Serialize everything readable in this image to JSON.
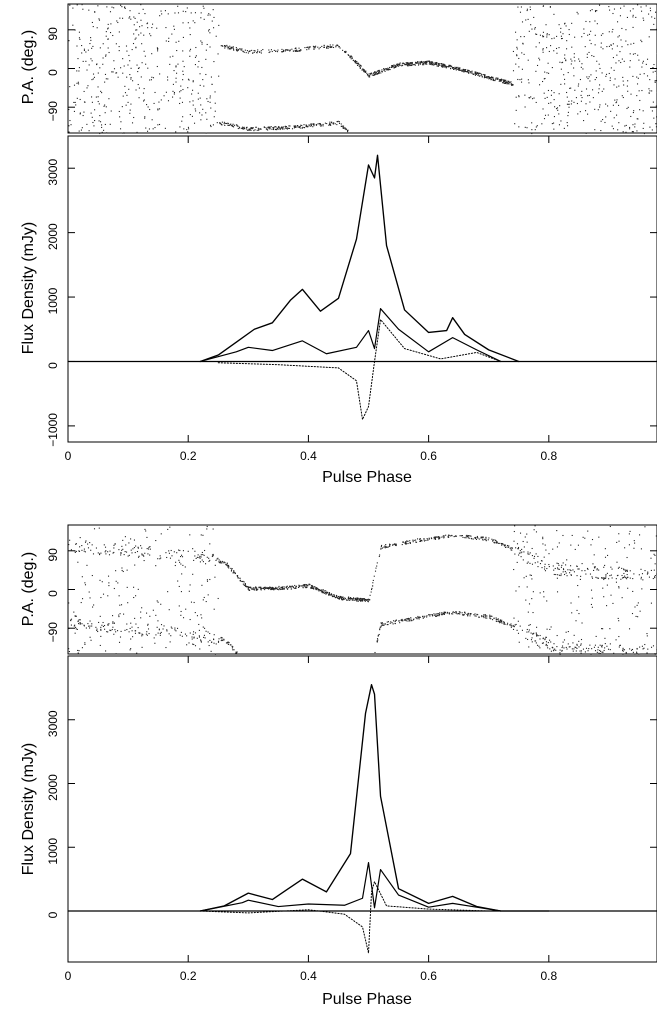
{
  "chart_data": [
    {
      "type": "scatter",
      "ylabel": "P.A. (deg.)",
      "xlim": [
        0,
        0.98
      ],
      "ylim": [
        -150,
        150
      ],
      "y_ticks": [
        -90,
        0,
        90
      ],
      "tick_labels": [
        "−90",
        "0",
        "90"
      ],
      "series": [
        {
          "values": [
            {
              "x": 0.25,
              "y": 55
            },
            {
              "x": 0.3,
              "y": 40
            },
            {
              "x": 0.38,
              "y": 45
            },
            {
              "x": 0.45,
              "y": 55
            },
            {
              "x": 0.5,
              "y": -15
            },
            {
              "x": 0.55,
              "y": 10
            },
            {
              "x": 0.6,
              "y": 15
            },
            {
              "x": 0.65,
              "y": 0
            },
            {
              "x": 0.7,
              "y": -20
            },
            {
              "x": 0.74,
              "y": -35
            }
          ]
        }
      ]
    },
    {
      "type": "line",
      "xlabel": "Pulse Phase",
      "ylabel": "Flux Density (mJy)",
      "xlim": [
        0,
        0.98
      ],
      "ylim": [
        -1250,
        3500
      ],
      "x_ticks": [
        0,
        0.2,
        0.4,
        0.6,
        0.8
      ],
      "y_ticks": [
        -1000,
        0,
        1000,
        2000,
        3000
      ],
      "tick_labels": [
        "−1000",
        "0",
        "1000",
        "2000",
        "3000"
      ],
      "series": [
        {
          "x": [
            0.22,
            0.25,
            0.28,
            0.31,
            0.34,
            0.37,
            0.39,
            0.42,
            0.45,
            0.48,
            0.5,
            0.51,
            0.515,
            0.53,
            0.56,
            0.6,
            0.63,
            0.64,
            0.66,
            0.7,
            0.75
          ],
          "values": [
            0,
            100,
            300,
            500,
            600,
            950,
            1120,
            780,
            980,
            1900,
            3050,
            2850,
            3200,
            1800,
            800,
            450,
            480,
            680,
            420,
            180,
            0
          ]
        },
        {
          "x": [
            0.22,
            0.28,
            0.3,
            0.34,
            0.39,
            0.43,
            0.48,
            0.5,
            0.51,
            0.52,
            0.55,
            0.6,
            0.64,
            0.68,
            0.72
          ],
          "values": [
            0,
            150,
            220,
            170,
            320,
            120,
            220,
            480,
            200,
            820,
            500,
            150,
            370,
            180,
            0
          ]
        },
        {
          "x": [
            0.25,
            0.35,
            0.45,
            0.48,
            0.49,
            0.5,
            0.51,
            0.52,
            0.56,
            0.62,
            0.68,
            0.72
          ],
          "values": [
            -20,
            -50,
            -100,
            -300,
            -900,
            -700,
            0,
            650,
            200,
            40,
            140,
            0
          ]
        }
      ]
    },
    {
      "type": "scatter",
      "ylabel": "P.A. (deg.)",
      "xlim": [
        0,
        0.98
      ],
      "ylim": [
        -150,
        150
      ],
      "y_ticks": [
        -90,
        0,
        90
      ],
      "tick_labels": [
        "−90",
        "0",
        "90"
      ],
      "series": [
        {
          "values": [
            {
              "x": 0.0,
              "y": 100
            },
            {
              "x": 0.1,
              "y": 92
            },
            {
              "x": 0.2,
              "y": 80
            },
            {
              "x": 0.26,
              "y": 65
            },
            {
              "x": 0.3,
              "y": 3
            },
            {
              "x": 0.36,
              "y": 5
            },
            {
              "x": 0.4,
              "y": 10
            },
            {
              "x": 0.45,
              "y": -18
            },
            {
              "x": 0.5,
              "y": -25
            },
            {
              "x": 0.52,
              "y": 100
            },
            {
              "x": 0.58,
              "y": 115
            },
            {
              "x": 0.64,
              "y": 128
            },
            {
              "x": 0.7,
              "y": 118
            },
            {
              "x": 0.74,
              "y": 95
            },
            {
              "x": 0.8,
              "y": 50
            },
            {
              "x": 0.88,
              "y": 40
            }
          ]
        }
      ]
    },
    {
      "type": "line",
      "xlabel": "Pulse Phase",
      "ylabel": "Flux Density (mJy)",
      "xlim": [
        0,
        0.98
      ],
      "ylim": [
        -800,
        4000
      ],
      "x_ticks": [
        0,
        0.2,
        0.4,
        0.6,
        0.8
      ],
      "y_ticks": [
        0,
        1000,
        2000,
        3000
      ],
      "tick_labels": [
        "0",
        "1000",
        "2000",
        "3000"
      ],
      "series": [
        {
          "x": [
            0.22,
            0.26,
            0.3,
            0.34,
            0.39,
            0.43,
            0.47,
            0.495,
            0.505,
            0.51,
            0.52,
            0.55,
            0.6,
            0.64,
            0.68,
            0.72,
            0.8
          ],
          "values": [
            0,
            80,
            280,
            180,
            500,
            300,
            900,
            3100,
            3550,
            3400,
            1800,
            350,
            120,
            230,
            70,
            0,
            0
          ]
        },
        {
          "x": [
            0.22,
            0.29,
            0.3,
            0.35,
            0.4,
            0.46,
            0.49,
            0.5,
            0.51,
            0.52,
            0.55,
            0.6,
            0.64,
            0.68,
            0.72
          ],
          "values": [
            0,
            130,
            170,
            70,
            110,
            90,
            200,
            760,
            50,
            650,
            250,
            60,
            120,
            60,
            0
          ]
        },
        {
          "x": [
            0.22,
            0.3,
            0.4,
            0.46,
            0.49,
            0.5,
            0.505,
            0.51,
            0.53,
            0.6,
            0.7
          ],
          "values": [
            0,
            -30,
            20,
            -50,
            -250,
            -660,
            300,
            460,
            80,
            30,
            0
          ]
        }
      ]
    }
  ]
}
